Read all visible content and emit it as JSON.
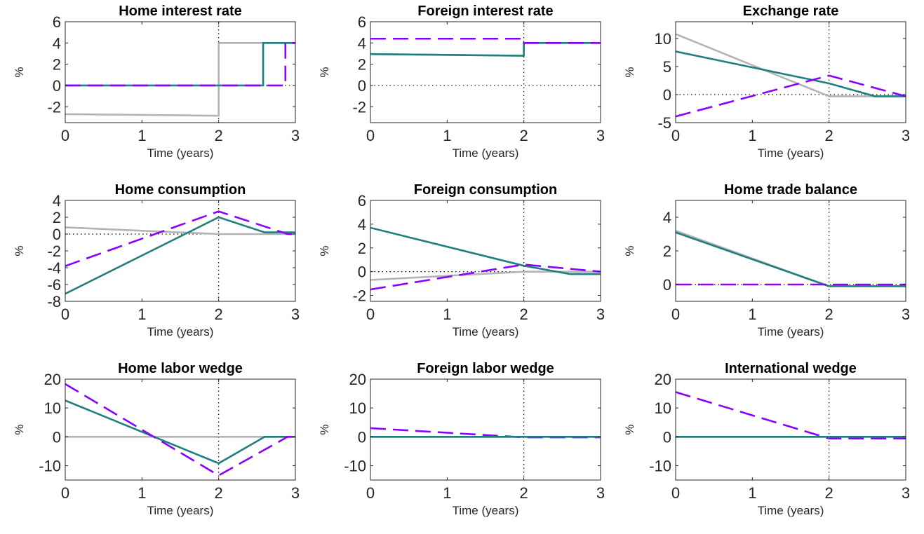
{
  "figure": {
    "colors": {
      "gray": "#b3b3b3",
      "teal": "#1f7f7f",
      "purple": "#8a00ff"
    }
  },
  "chart_data": [
    {
      "type": "line",
      "title": "Home interest rate",
      "xlabel": "Time (years)",
      "ylabel": "%",
      "xlim": [
        0,
        3
      ],
      "ylim": [
        -3.5,
        6
      ],
      "xticks": [
        0,
        1,
        2,
        3
      ],
      "yticks": [
        -2,
        0,
        2,
        4,
        6
      ],
      "grid": false,
      "legend": "none",
      "series": [
        {
          "color": "gray",
          "style": "solid",
          "x": [
            0,
            2,
            2,
            3
          ],
          "y": [
            -2.7,
            -2.85,
            4,
            4
          ]
        },
        {
          "color": "teal",
          "style": "solid",
          "x": [
            0,
            2.58,
            2.58,
            3
          ],
          "y": [
            0,
            0,
            4,
            4
          ]
        },
        {
          "color": "purple",
          "style": "dashed",
          "x": [
            0,
            2.87,
            2.87,
            3
          ],
          "y": [
            0,
            0,
            4,
            4
          ]
        }
      ],
      "refs": {
        "hline": 0,
        "vline": 2
      }
    },
    {
      "type": "line",
      "title": "Foreign interest rate",
      "xlabel": "Time (years)",
      "ylabel": "%",
      "xlim": [
        0,
        3
      ],
      "ylim": [
        -3.5,
        6
      ],
      "xticks": [
        0,
        1,
        2,
        3
      ],
      "yticks": [
        -2,
        0,
        2,
        4,
        6
      ],
      "grid": false,
      "legend": "none",
      "series": [
        {
          "color": "gray",
          "style": "solid",
          "x": [
            0,
            2,
            2,
            3
          ],
          "y": [
            2.95,
            2.8,
            4,
            4
          ]
        },
        {
          "color": "teal",
          "style": "solid",
          "x": [
            0,
            2,
            2,
            3
          ],
          "y": [
            2.95,
            2.8,
            4,
            4
          ]
        },
        {
          "color": "purple",
          "style": "dashed",
          "x": [
            0,
            2,
            2,
            3
          ],
          "y": [
            4.4,
            4.4,
            4,
            4
          ]
        }
      ],
      "refs": {
        "hline": 0,
        "vline": 2
      }
    },
    {
      "type": "line",
      "title": "Exchange rate",
      "xlabel": "Time (years)",
      "ylabel": "%",
      "xlim": [
        0,
        3
      ],
      "ylim": [
        -5,
        13
      ],
      "xticks": [
        0,
        1,
        2,
        3
      ],
      "yticks": [
        -5,
        0,
        5,
        10
      ],
      "grid": false,
      "legend": "none",
      "series": [
        {
          "color": "gray",
          "style": "solid",
          "x": [
            0,
            2,
            2.6,
            3
          ],
          "y": [
            10.8,
            -0.3,
            -0.3,
            -0.3
          ]
        },
        {
          "color": "teal",
          "style": "solid",
          "x": [
            0,
            2,
            2.6,
            3
          ],
          "y": [
            7.7,
            2.0,
            -0.3,
            -0.3
          ]
        },
        {
          "color": "purple",
          "style": "dashed",
          "x": [
            0,
            2,
            3
          ],
          "y": [
            -3.9,
            3.4,
            -0.3
          ]
        }
      ],
      "refs": {
        "hline": 0,
        "vline": 2
      }
    },
    {
      "type": "line",
      "title": "Home consumption",
      "xlabel": "Time (years)",
      "ylabel": "%",
      "xlim": [
        0,
        3
      ],
      "ylim": [
        -8,
        4
      ],
      "xticks": [
        0,
        1,
        2,
        3
      ],
      "yticks": [
        -8,
        -6,
        -4,
        -2,
        0,
        2,
        4
      ],
      "grid": false,
      "legend": "none",
      "series": [
        {
          "color": "gray",
          "style": "solid",
          "x": [
            0,
            2,
            3
          ],
          "y": [
            0.8,
            0,
            0
          ]
        },
        {
          "color": "teal",
          "style": "solid",
          "x": [
            0,
            2,
            2.6,
            3
          ],
          "y": [
            -7.1,
            2.0,
            0.2,
            0.2
          ]
        },
        {
          "color": "purple",
          "style": "dashed",
          "x": [
            0,
            2,
            2.9,
            3
          ],
          "y": [
            -3.8,
            2.7,
            0,
            0
          ]
        }
      ],
      "refs": {
        "hline": 0,
        "vline": 2
      }
    },
    {
      "type": "line",
      "title": "Foreign consumption",
      "xlabel": "Time (years)",
      "ylabel": "%",
      "xlim": [
        0,
        3
      ],
      "ylim": [
        -2.5,
        6
      ],
      "xticks": [
        0,
        1,
        2,
        3
      ],
      "yticks": [
        -2,
        0,
        2,
        4,
        6
      ],
      "grid": false,
      "legend": "none",
      "series": [
        {
          "color": "gray",
          "style": "solid",
          "x": [
            0,
            2,
            3
          ],
          "y": [
            -0.7,
            0,
            0
          ]
        },
        {
          "color": "teal",
          "style": "solid",
          "x": [
            0,
            2,
            2.6,
            3
          ],
          "y": [
            3.7,
            0.5,
            -0.2,
            -0.2
          ]
        },
        {
          "color": "purple",
          "style": "dashed",
          "x": [
            0,
            2,
            3
          ],
          "y": [
            -1.5,
            0.6,
            0
          ]
        }
      ],
      "refs": {
        "hline": 0,
        "vline": 2
      }
    },
    {
      "type": "line",
      "title": "Home trade balance",
      "xlabel": "Time (years)",
      "ylabel": "%",
      "xlim": [
        0,
        3
      ],
      "ylim": [
        -1,
        5
      ],
      "xticks": [
        0,
        1,
        2,
        3
      ],
      "yticks": [
        0,
        2,
        4
      ],
      "grid": false,
      "legend": "none",
      "series": [
        {
          "color": "gray",
          "style": "solid",
          "x": [
            0,
            2,
            3
          ],
          "y": [
            3.2,
            -0.1,
            -0.1
          ]
        },
        {
          "color": "teal",
          "style": "solid",
          "x": [
            0,
            2,
            3
          ],
          "y": [
            3.1,
            -0.1,
            -0.1
          ]
        },
        {
          "color": "purple",
          "style": "dashed",
          "x": [
            0,
            3
          ],
          "y": [
            0,
            0
          ]
        }
      ],
      "refs": {
        "hline": 0,
        "vline": 2
      }
    },
    {
      "type": "line",
      "title": "Home labor wedge",
      "xlabel": "Time (years)",
      "ylabel": "%",
      "xlim": [
        0,
        3
      ],
      "ylim": [
        -15,
        20
      ],
      "xticks": [
        0,
        1,
        2,
        3
      ],
      "yticks": [
        -10,
        0,
        10,
        20
      ],
      "grid": false,
      "legend": "none",
      "series": [
        {
          "color": "gray",
          "style": "solid",
          "x": [
            0,
            3
          ],
          "y": [
            0,
            0
          ]
        },
        {
          "color": "teal",
          "style": "solid",
          "x": [
            0,
            2,
            2.6,
            3
          ],
          "y": [
            12.6,
            -9.2,
            0,
            0
          ]
        },
        {
          "color": "purple",
          "style": "dashed",
          "x": [
            0,
            2,
            2.9,
            3
          ],
          "y": [
            18.3,
            -13.4,
            0,
            0
          ]
        }
      ],
      "refs": {
        "hline": 0,
        "vline": 2
      }
    },
    {
      "type": "line",
      "title": "Foreign labor wedge",
      "xlabel": "Time (years)",
      "ylabel": "%",
      "xlim": [
        0,
        3
      ],
      "ylim": [
        -15,
        20
      ],
      "xticks": [
        0,
        1,
        2,
        3
      ],
      "yticks": [
        -10,
        0,
        10,
        20
      ],
      "grid": false,
      "legend": "none",
      "series": [
        {
          "color": "gray",
          "style": "solid",
          "x": [
            0,
            3
          ],
          "y": [
            0,
            0
          ]
        },
        {
          "color": "purple",
          "style": "dashed",
          "x": [
            0,
            2,
            3
          ],
          "y": [
            3.0,
            -0.2,
            -0.2
          ]
        },
        {
          "color": "teal",
          "style": "solid",
          "x": [
            0,
            3
          ],
          "y": [
            0,
            0
          ]
        }
      ],
      "refs": {
        "hline": 0,
        "vline": 2
      }
    },
    {
      "type": "line",
      "title": "International wedge",
      "xlabel": "Time (years)",
      "ylabel": "%",
      "xlim": [
        0,
        3
      ],
      "ylim": [
        -15,
        20
      ],
      "xticks": [
        0,
        1,
        2,
        3
      ],
      "yticks": [
        -10,
        0,
        10,
        20
      ],
      "grid": false,
      "legend": "none",
      "series": [
        {
          "color": "gray",
          "style": "solid",
          "x": [
            0,
            3
          ],
          "y": [
            0,
            0
          ]
        },
        {
          "color": "purple",
          "style": "dashed",
          "x": [
            0,
            2,
            3
          ],
          "y": [
            15.5,
            -0.6,
            -0.6
          ]
        },
        {
          "color": "teal",
          "style": "solid",
          "x": [
            0,
            3
          ],
          "y": [
            0,
            0
          ]
        }
      ],
      "refs": {
        "hline": 0,
        "vline": 2
      }
    }
  ]
}
